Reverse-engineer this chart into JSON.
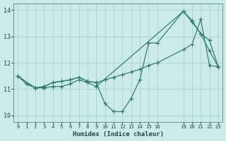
{
  "background_color": "#cceae6",
  "grid_color": "#aad4cf",
  "line_color": "#2a7a6e",
  "xlabel": "Humidex (Indice chaleur)",
  "xlim": [
    -0.5,
    23.5
  ],
  "ylim": [
    9.75,
    14.25
  ],
  "xticks": [
    0,
    1,
    2,
    3,
    4,
    5,
    6,
    7,
    8,
    9,
    10,
    11,
    12,
    13,
    14,
    15,
    16,
    19,
    20,
    21,
    22,
    23
  ],
  "yticks": [
    10,
    11,
    12,
    13,
    14
  ],
  "line1_x": [
    0,
    1,
    2,
    3,
    4,
    5,
    6,
    7,
    8,
    9,
    10,
    11,
    12,
    13,
    14,
    15,
    16,
    19,
    20,
    21,
    22,
    23
  ],
  "line1_y": [
    11.5,
    11.2,
    11.05,
    11.1,
    11.25,
    11.3,
    11.35,
    11.45,
    11.3,
    11.25,
    10.45,
    10.15,
    10.15,
    10.65,
    11.35,
    12.75,
    12.75,
    13.95,
    13.55,
    13.1,
    12.45,
    11.85
  ],
  "line2_x": [
    0,
    1,
    2,
    3,
    4,
    5,
    6,
    7,
    8,
    9,
    10,
    11,
    12,
    13,
    14,
    15,
    16,
    19,
    20,
    21,
    22,
    23
  ],
  "line2_y": [
    11.5,
    11.2,
    11.05,
    11.1,
    11.25,
    11.3,
    11.35,
    11.45,
    11.3,
    11.25,
    11.35,
    11.45,
    11.55,
    11.65,
    11.75,
    11.9,
    12.0,
    12.5,
    12.7,
    13.65,
    11.9,
    11.85
  ],
  "line3_x": [
    0,
    2,
    3,
    4,
    5,
    6,
    7,
    8,
    9,
    19,
    20,
    21,
    22,
    23
  ],
  "line3_y": [
    11.5,
    11.05,
    11.05,
    11.1,
    11.1,
    11.2,
    11.35,
    11.25,
    11.1,
    13.95,
    13.6,
    13.1,
    12.85,
    11.85
  ]
}
